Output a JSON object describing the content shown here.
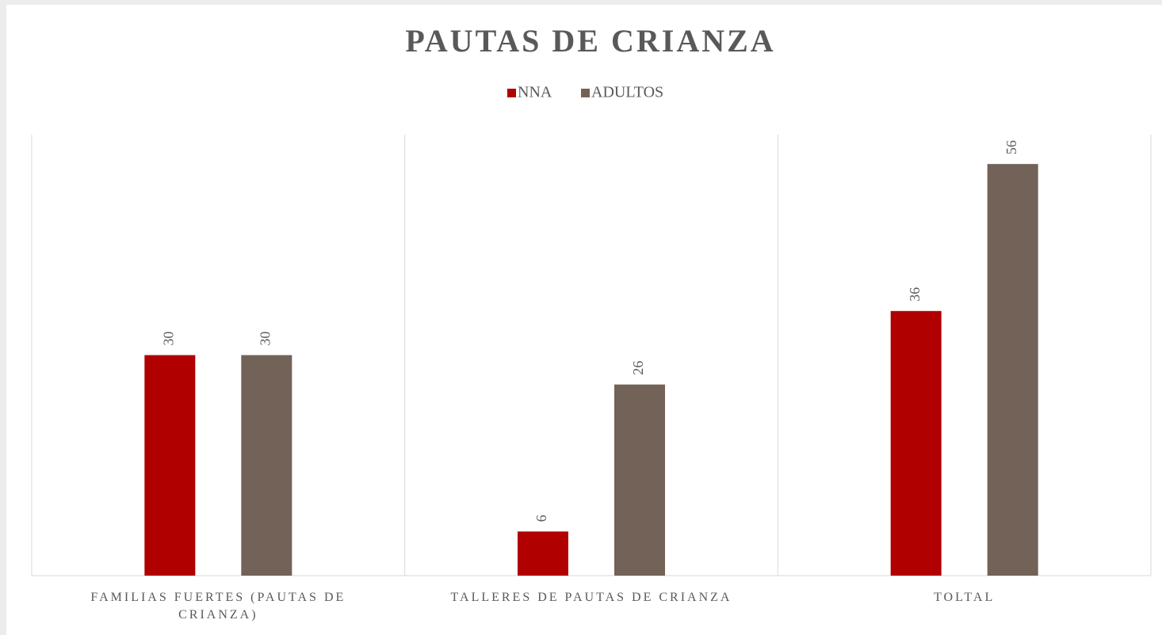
{
  "chart_data": {
    "type": "bar",
    "title": "PAUTAS DE CRIANZA",
    "categories": [
      "FAMILIAS FUERTES (PAUTAS DE CRIANZA)",
      "TALLERES DE PAUTAS DE CRIANZA",
      "TOLTAL"
    ],
    "series": [
      {
        "name": "NNA",
        "color": "#b00000",
        "values": [
          30,
          6,
          36
        ]
      },
      {
        "name": "ADULTOS",
        "color": "#736257",
        "values": [
          30,
          26,
          56
        ]
      }
    ],
    "ylim": [
      0,
      60
    ],
    "legend": "top"
  }
}
